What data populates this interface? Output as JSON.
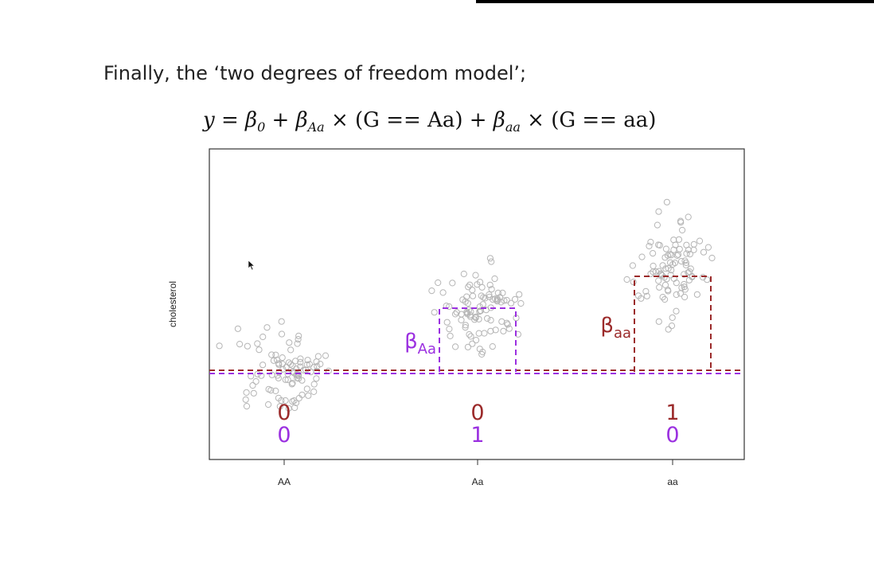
{
  "slide": {
    "intro_text": "Finally, the ‘two degrees of freedom model’;",
    "equation": {
      "lhs": "y",
      "b0": "β",
      "b0_sub": "0",
      "plus1": "+",
      "bAa": "β",
      "bAa_sub": "Aa",
      "times1": "×",
      "term1": "(G == Aa)",
      "plus2": "+",
      "baa": "β",
      "baa_sub": "aa",
      "times2": "×",
      "term2": "(G == aa)"
    }
  },
  "chart_data": {
    "type": "scatter",
    "ylabel": "cholesterol",
    "xlabel": "",
    "categories": [
      "AA",
      "Aa",
      "aa"
    ],
    "baseline": 0,
    "ylim": [
      -11,
      28
    ],
    "groups": [
      {
        "category": "AA",
        "center": 0,
        "spread": 4.5
      },
      {
        "category": "Aa",
        "center": 8,
        "spread": 5
      },
      {
        "category": "aa",
        "center": 13,
        "spread": 5.5
      }
    ],
    "coefficients": [
      {
        "name": "βAa",
        "label": "β",
        "sub": "Aa",
        "value": 8,
        "category": "Aa",
        "color": "#9b30e0"
      },
      {
        "name": "βaa",
        "label": "β",
        "sub": "aa",
        "value": 12,
        "category": "aa",
        "color": "#9b2a2a"
      }
    ],
    "indicators": [
      {
        "category": "AA",
        "aa_indicator": "0",
        "Aa_indicator": "0"
      },
      {
        "category": "Aa",
        "aa_indicator": "0",
        "Aa_indicator": "1"
      },
      {
        "category": "aa",
        "aa_indicator": "1",
        "Aa_indicator": "0"
      }
    ],
    "colors": {
      "aa": "#9b2a2a",
      "Aa": "#9b30e0",
      "points": "#b5b5b5",
      "frame": "#333333"
    },
    "grid": false
  }
}
